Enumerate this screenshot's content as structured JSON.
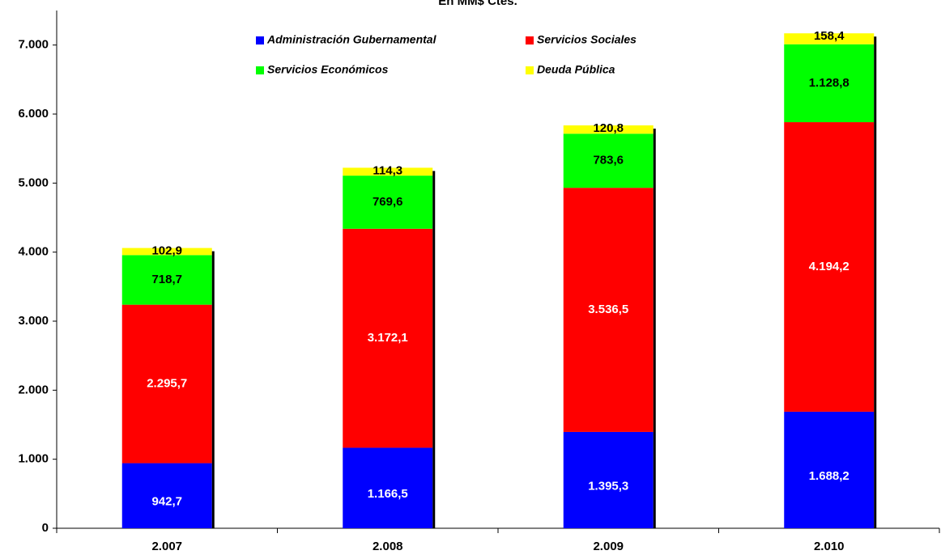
{
  "chart_data": {
    "type": "stacked_bar",
    "title": "En MM$ Ctes.",
    "categories": [
      "2.007",
      "2.008",
      "2.009",
      "2.010"
    ],
    "series": [
      {
        "name": "Administración Gubernamental",
        "color": "#0000ff",
        "values": [
          942.7,
          1166.5,
          1395.3,
          1688.2
        ],
        "value_labels": [
          "942,7",
          "1.166,5",
          "1.395,3",
          "1.688,2"
        ]
      },
      {
        "name": "Servicios Sociales",
        "color": "#ff0000",
        "values": [
          2295.7,
          3172.1,
          3536.5,
          4194.2
        ],
        "value_labels": [
          "2.295,7",
          "3.172,1",
          "3.536,5",
          "4.194,2"
        ]
      },
      {
        "name": "Servicios Económicos",
        "color": "#00ff00",
        "values": [
          718.7,
          769.6,
          783.6,
          1128.8
        ],
        "value_labels": [
          "718,7",
          "769,6",
          "783,6",
          "1.128,8"
        ]
      },
      {
        "name": "Deuda Pública",
        "color": "#ffff00",
        "values": [
          102.9,
          114.3,
          120.8,
          158.4
        ],
        "value_labels": [
          "102,9",
          "114,3",
          "120,8",
          "158,4"
        ]
      }
    ],
    "ylim": [
      0,
      7500
    ],
    "yticks": [
      0,
      {
        "value": 1000,
        "label": "1.000"
      },
      {
        "value": 2000,
        "label": "2.000"
      },
      {
        "value": 3000,
        "label": "3.000"
      },
      {
        "value": 4000,
        "label": "4.000"
      },
      {
        "value": 5000,
        "label": "5.000"
      },
      {
        "value": 6000,
        "label": "6.000"
      },
      {
        "value": 7000,
        "label": "7.000"
      }
    ]
  }
}
